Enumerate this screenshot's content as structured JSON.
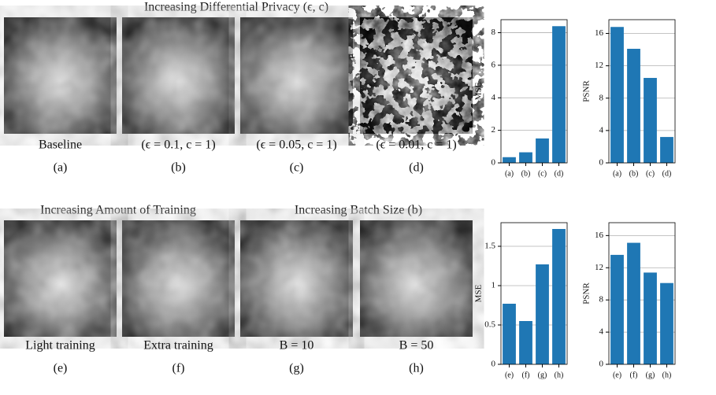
{
  "figure": {
    "titles": [
      "Increasing Differential Privacy (ϵ, c)",
      "Increasing Amount of Training",
      "Increasing Batch Size (b)"
    ],
    "panels": [
      {
        "caption": "Baseline",
        "label": "(a)"
      },
      {
        "caption": "(ϵ = 0.1, c = 1)",
        "label": "(b)"
      },
      {
        "caption": "(ϵ = 0.05, c = 1)",
        "label": "(c)"
      },
      {
        "caption": "(ϵ = 0.01, c = 1)",
        "label": "(d)"
      },
      {
        "caption": "Light training",
        "label": "(e)"
      },
      {
        "caption": "Extra training",
        "label": "(f)"
      },
      {
        "caption": "B = 10",
        "label": "(g)"
      },
      {
        "caption": "B = 50",
        "label": "(h)"
      }
    ]
  },
  "chart_data": [
    {
      "type": "bar",
      "y_label": "MSE",
      "categories": [
        "(a)",
        "(b)",
        "(c)",
        "(d)"
      ],
      "values": [
        0.35,
        0.65,
        1.5,
        8.4
      ],
      "color": "#1f77b4",
      "ylim": [
        0,
        8.8
      ],
      "yticks": [
        0,
        2,
        4,
        6,
        8
      ],
      "grid": true
    },
    {
      "type": "bar",
      "y_label": "PSNR",
      "categories": [
        "(a)",
        "(b)",
        "(c)",
        "(d)"
      ],
      "values": [
        16.8,
        14.1,
        10.5,
        3.2
      ],
      "color": "#1f77b4",
      "ylim": [
        0,
        17.7
      ],
      "yticks": [
        0,
        4,
        8,
        12,
        16
      ],
      "grid": true
    },
    {
      "type": "bar",
      "y_label": "MSE",
      "categories": [
        "(e)",
        "(f)",
        "(g)",
        "(h)"
      ],
      "values": [
        0.77,
        0.55,
        1.27,
        1.72
      ],
      "color": "#1f77b4",
      "ylim": [
        0,
        1.8
      ],
      "yticks": [
        0,
        0.5,
        1,
        1.5
      ],
      "grid": true
    },
    {
      "type": "bar",
      "y_label": "PSNR",
      "categories": [
        "(e)",
        "(f)",
        "(g)",
        "(h)"
      ],
      "values": [
        13.6,
        15.1,
        11.4,
        10.1
      ],
      "color": "#1f77b4",
      "ylim": [
        0,
        17.6
      ],
      "yticks": [
        0,
        4,
        8,
        12,
        16
      ],
      "grid": true
    }
  ]
}
